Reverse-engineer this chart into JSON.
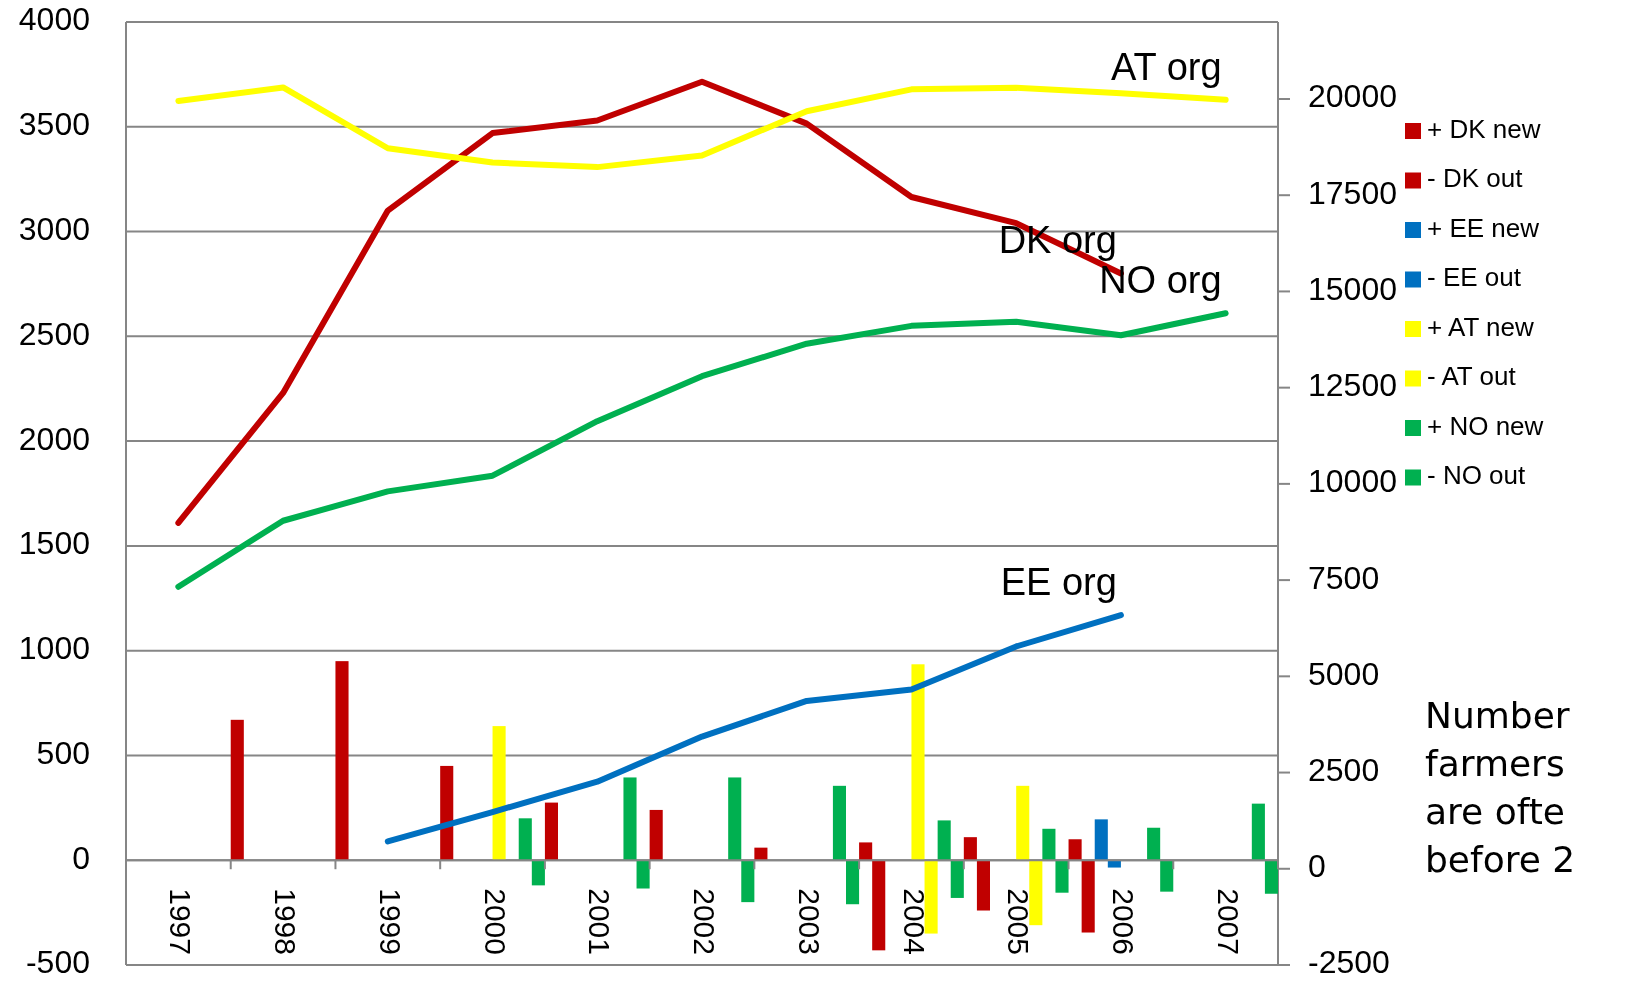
{
  "chart_data": {
    "type": "bar",
    "categories": [
      "1997",
      "1998",
      "1999",
      "2000",
      "2001",
      "2002",
      "2003",
      "2004",
      "2005",
      "2006",
      "2007"
    ],
    "series": [
      {
        "name": "+ DK new",
        "color": "#c00000",
        "values": [
          null,
          670,
          950,
          450,
          275,
          240,
          60,
          85,
          110,
          100,
          null
        ]
      },
      {
        "name": "- DK out",
        "color": "#c00000",
        "values": [
          null,
          null,
          null,
          null,
          null,
          null,
          null,
          -430,
          -240,
          -345,
          null
        ]
      },
      {
        "name": "+ EE new",
        "color": "#0070c0",
        "values": [
          null,
          null,
          null,
          null,
          null,
          null,
          null,
          null,
          null,
          195,
          null
        ]
      },
      {
        "name": "- EE out",
        "color": "#0070c0",
        "values": [
          null,
          null,
          null,
          null,
          null,
          null,
          null,
          null,
          null,
          -35,
          null
        ]
      },
      {
        "name": "+ AT new",
        "color": "#ffff00",
        "values": [
          null,
          null,
          null,
          640,
          null,
          null,
          null,
          935,
          355,
          null,
          null
        ]
      },
      {
        "name": "- AT out",
        "color": "#ffff00",
        "values": [
          null,
          null,
          null,
          null,
          null,
          null,
          null,
          -350,
          -310,
          null,
          null
        ]
      },
      {
        "name": "+ NO new",
        "color": "#00b050",
        "values": [
          null,
          null,
          null,
          200,
          395,
          395,
          355,
          190,
          150,
          155,
          270
        ]
      },
      {
        "name": "- NO out",
        "color": "#00b050",
        "values": [
          null,
          null,
          null,
          -120,
          -135,
          -200,
          -210,
          -180,
          -155,
          -150,
          -160
        ]
      },
      {
        "name": "DK org",
        "type": "line",
        "color": "#c00000",
        "values": [
          1610,
          2230,
          3100,
          3470,
          3530,
          3715,
          3515,
          3165,
          3040,
          2800,
          null
        ]
      },
      {
        "name": "EE org",
        "type": "line",
        "color": "#0070c0",
        "values": [
          null,
          null,
          90,
          230,
          375,
          590,
          760,
          815,
          1020,
          1170,
          null
        ]
      },
      {
        "name": "AT org",
        "type": "line",
        "axis": "y2",
        "color": "#ffff00",
        "values": [
          19950,
          20300,
          18720,
          18350,
          18230,
          18530,
          19680,
          20250,
          20290,
          20150,
          19980
        ]
      },
      {
        "name": "NO org",
        "type": "line",
        "color": "#00b050",
        "values": [
          1305,
          1620,
          1760,
          1835,
          2095,
          2310,
          2465,
          2550,
          2570,
          2505,
          2610
        ]
      }
    ],
    "ylim": [
      -500,
      4000
    ],
    "yticks": [
      -500,
      0,
      500,
      1000,
      1500,
      2000,
      2500,
      3000,
      3500,
      4000
    ],
    "y2lim": [
      -2500,
      22000
    ],
    "y2ticks": [
      -2500,
      0,
      2500,
      5000,
      7500,
      10000,
      12500,
      15000,
      17500,
      20000
    ],
    "grid": "y",
    "legend": "right",
    "annotations": [
      "Number\nfarmers\nare ofte\nbefore 2"
    ]
  }
}
